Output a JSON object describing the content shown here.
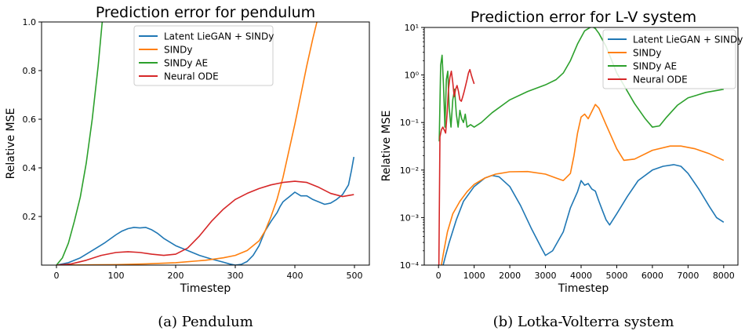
{
  "colors": {
    "latent": "#1f77b4",
    "sindy": "#ff7f0e",
    "sindy_ae": "#2ca02c",
    "neural_ode": "#d62728"
  },
  "chart_data": [
    {
      "type": "line",
      "title": "Prediction error for pendulum",
      "caption": "(a) Pendulum",
      "xlabel": "Timestep",
      "ylabel": "Relative MSE",
      "xlim": [
        -25,
        525
      ],
      "ylim": [
        0,
        1.0
      ],
      "xticks": [
        0,
        100,
        200,
        300,
        400,
        500
      ],
      "xtick_labels": [
        "0",
        "100",
        "200",
        "300",
        "400",
        "500"
      ],
      "yticks": [
        0.2,
        0.4,
        0.6,
        0.8,
        1.0
      ],
      "ytick_labels": [
        "0.2",
        "0.4",
        "0.6",
        "0.8",
        "1.0"
      ],
      "grid": false,
      "legend_position": "top-center",
      "series": [
        {
          "name": "Latent LieGAN + SINDy",
          "color_key": "latent",
          "x": [
            0,
            20,
            40,
            60,
            80,
            100,
            110,
            120,
            130,
            140,
            150,
            160,
            170,
            180,
            200,
            220,
            240,
            260,
            280,
            290,
            300,
            310,
            320,
            330,
            340,
            350,
            360,
            370,
            375,
            380,
            385,
            390,
            395,
            400,
            410,
            420,
            430,
            440,
            450,
            460,
            470,
            480,
            490,
            495,
            499
          ],
          "y": [
            0.0,
            0.01,
            0.03,
            0.06,
            0.09,
            0.125,
            0.14,
            0.15,
            0.155,
            0.153,
            0.155,
            0.145,
            0.13,
            0.11,
            0.08,
            0.06,
            0.04,
            0.025,
            0.012,
            0.005,
            0.0,
            0.003,
            0.015,
            0.04,
            0.08,
            0.14,
            0.18,
            0.215,
            0.24,
            0.26,
            0.27,
            0.28,
            0.29,
            0.3,
            0.285,
            0.285,
            0.27,
            0.26,
            0.25,
            0.255,
            0.27,
            0.29,
            0.33,
            0.39,
            0.445
          ]
        },
        {
          "name": "SINDy",
          "color_key": "sindy",
          "x": [
            0,
            50,
            100,
            150,
            200,
            250,
            280,
            300,
            320,
            340,
            350,
            360,
            370,
            380,
            390,
            400,
            410,
            420,
            430,
            436,
            440
          ],
          "y": [
            0.0,
            0.001,
            0.002,
            0.005,
            0.01,
            0.02,
            0.03,
            0.04,
            0.06,
            0.1,
            0.14,
            0.2,
            0.27,
            0.36,
            0.47,
            0.58,
            0.7,
            0.82,
            0.93,
            0.99,
            1.03
          ]
        },
        {
          "name": "SINDy AE",
          "color_key": "sindy_ae",
          "x": [
            0,
            10,
            20,
            30,
            40,
            50,
            60,
            70,
            76,
            80
          ],
          "y": [
            0.0,
            0.03,
            0.09,
            0.18,
            0.28,
            0.42,
            0.6,
            0.82,
            0.98,
            1.08
          ]
        },
        {
          "name": "Neural ODE",
          "color_key": "neural_ode",
          "x": [
            0,
            25,
            50,
            75,
            100,
            120,
            140,
            160,
            180,
            200,
            220,
            240,
            260,
            280,
            300,
            320,
            340,
            360,
            380,
            400,
            420,
            440,
            460,
            480,
            499
          ],
          "y": [
            0.0,
            0.005,
            0.02,
            0.04,
            0.052,
            0.055,
            0.052,
            0.045,
            0.04,
            0.045,
            0.07,
            0.12,
            0.18,
            0.23,
            0.27,
            0.295,
            0.315,
            0.33,
            0.34,
            0.345,
            0.34,
            0.32,
            0.295,
            0.282,
            0.29
          ]
        }
      ]
    },
    {
      "type": "line",
      "title": "Prediction error for L-V system",
      "caption": "(b) Lotka-Volterra system",
      "xlabel": "Timestep",
      "ylabel": "Relative MSE",
      "yscale": "log",
      "xlim": [
        -400,
        8400
      ],
      "ylim": [
        0.0001,
        10
      ],
      "xticks": [
        0,
        1000,
        2000,
        3000,
        4000,
        5000,
        6000,
        7000,
        8000
      ],
      "xtick_labels": [
        "0",
        "1000",
        "2000",
        "3000",
        "4000",
        "5000",
        "6000",
        "7000",
        "8000"
      ],
      "yticks": [
        0.0001,
        0.001,
        0.01,
        0.1,
        1,
        10
      ],
      "ytick_labels": [
        "10⁻⁴",
        "10⁻³",
        "10⁻²",
        "10⁻¹",
        "10⁰",
        "10¹"
      ],
      "grid": false,
      "legend_position": "top-right",
      "series": [
        {
          "name": "Latent LieGAN + SINDy",
          "color_key": "latent",
          "x": [
            130,
            200,
            300,
            500,
            700,
            1000,
            1300,
            1500,
            1700,
            2000,
            2300,
            2600,
            2900,
            3000,
            3200,
            3500,
            3700,
            3900,
            4000,
            4100,
            4200,
            4300,
            4400,
            4500,
            4600,
            4700,
            4800,
            5000,
            5300,
            5600,
            6000,
            6300,
            6600,
            6800,
            7000,
            7300,
            7600,
            7800,
            8000
          ],
          "y": [
            0.0001,
            0.00016,
            0.0003,
            0.0009,
            0.0022,
            0.0045,
            0.0068,
            0.0077,
            0.0072,
            0.0045,
            0.0018,
            0.0006,
            0.00022,
            0.00016,
            0.0002,
            0.0005,
            0.0016,
            0.0035,
            0.006,
            0.0048,
            0.0052,
            0.004,
            0.0036,
            0.0022,
            0.0014,
            0.0009,
            0.0007,
            0.0012,
            0.0028,
            0.006,
            0.01,
            0.012,
            0.013,
            0.012,
            0.0085,
            0.004,
            0.0017,
            0.001,
            0.0008
          ]
        },
        {
          "name": "SINDy",
          "color_key": "sindy",
          "x": [
            80,
            150,
            250,
            400,
            600,
            800,
            1000,
            1300,
            1600,
            2000,
            2500,
            3000,
            3300,
            3500,
            3700,
            3800,
            3900,
            4000,
            4100,
            4200,
            4300,
            4400,
            4500,
            4700,
            5000,
            5200,
            5500,
            6000,
            6500,
            6800,
            7200,
            7600,
            8000
          ],
          "y": [
            0.0001,
            0.0002,
            0.0005,
            0.0012,
            0.0022,
            0.0035,
            0.005,
            0.0068,
            0.0082,
            0.0092,
            0.0093,
            0.0082,
            0.0068,
            0.006,
            0.0085,
            0.02,
            0.06,
            0.13,
            0.15,
            0.12,
            0.17,
            0.24,
            0.2,
            0.09,
            0.028,
            0.016,
            0.017,
            0.026,
            0.032,
            0.032,
            0.028,
            0.022,
            0.016
          ]
        },
        {
          "name": "SINDy AE",
          "color_key": "sindy_ae",
          "x": [
            20,
            60,
            100,
            140,
            180,
            220,
            260,
            300,
            350,
            400,
            450,
            500,
            550,
            600,
            650,
            700,
            750,
            800,
            900,
            1000,
            1200,
            1500,
            2000,
            2500,
            3000,
            3300,
            3500,
            3700,
            3900,
            4100,
            4300,
            4400,
            4500,
            4700,
            5000,
            5500,
            5800,
            6000,
            6200,
            6400,
            6700,
            7000,
            7500,
            8000
          ],
          "y": [
            0.04,
            1.6,
            2.6,
            0.6,
            0.08,
            0.8,
            1.2,
            0.2,
            0.08,
            0.3,
            0.5,
            0.15,
            0.08,
            0.18,
            0.12,
            0.1,
            0.15,
            0.08,
            0.09,
            0.08,
            0.1,
            0.16,
            0.3,
            0.45,
            0.62,
            0.8,
            1.1,
            2.0,
            4.5,
            8.5,
            10.5,
            9.5,
            7.5,
            4.0,
            1.1,
            0.25,
            0.12,
            0.08,
            0.085,
            0.13,
            0.23,
            0.33,
            0.43,
            0.5
          ]
        },
        {
          "name": "Neural ODE",
          "color_key": "neural_ode",
          "x": [
            10,
            40,
            80,
            120,
            160,
            200,
            240,
            280,
            320,
            360,
            400,
            440,
            480,
            520,
            560,
            600,
            640,
            680,
            720,
            760,
            800,
            840,
            880,
            920,
            960,
            1000
          ],
          "y": [
            0.0001,
            0.05,
            0.07,
            0.08,
            0.07,
            0.06,
            0.15,
            0.5,
            0.9,
            1.2,
            0.7,
            0.35,
            0.5,
            0.6,
            0.45,
            0.3,
            0.28,
            0.35,
            0.45,
            0.6,
            0.8,
            1.1,
            1.3,
            1.0,
            0.8,
            0.65
          ]
        }
      ]
    }
  ]
}
